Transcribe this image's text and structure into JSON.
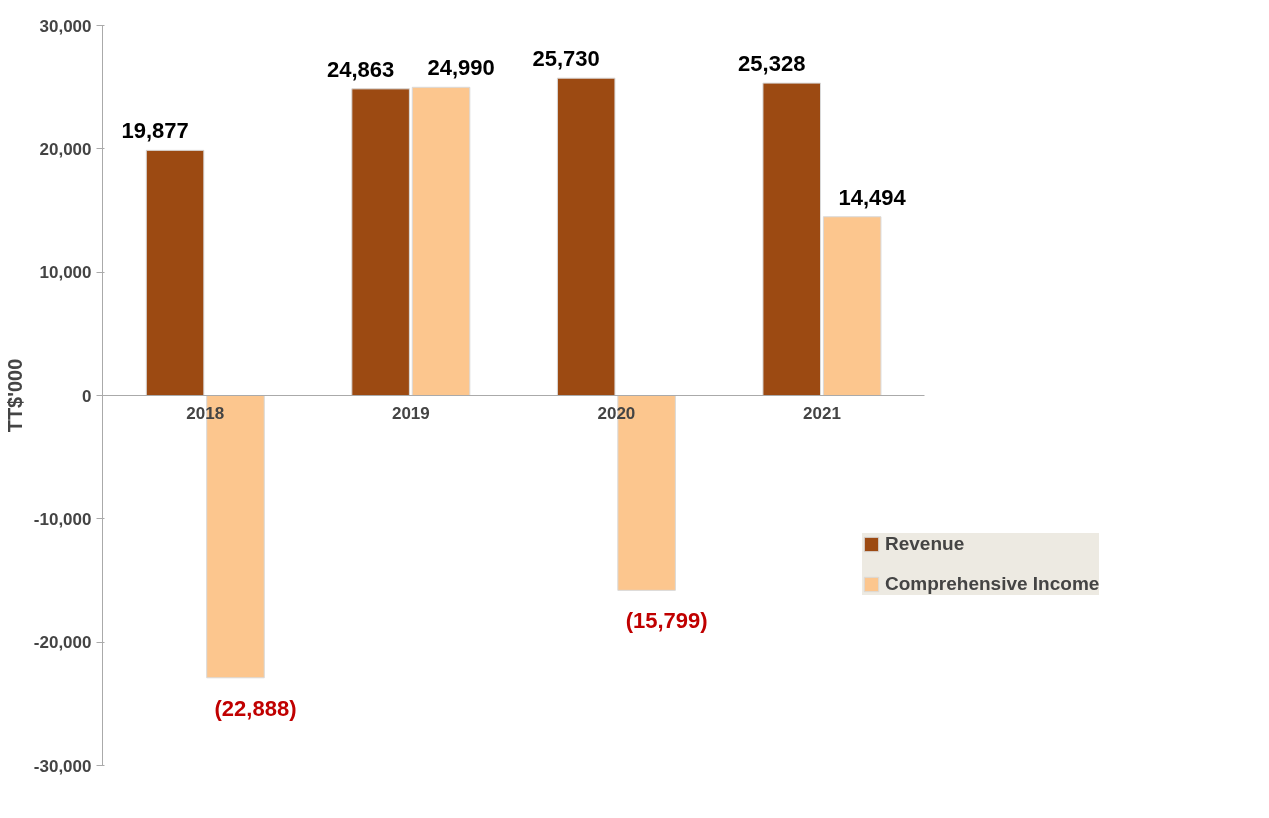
{
  "chart_data": {
    "type": "bar",
    "ylabel": "TT$'000",
    "categories": [
      "2018",
      "2019",
      "2020",
      "2021"
    ],
    "series": [
      {
        "name": "Revenue",
        "color": "#9c4a12",
        "values": [
          19877,
          24863,
          25730,
          25328
        ],
        "value_labels": [
          "19,877",
          "24,863",
          "25,730",
          "25,328"
        ]
      },
      {
        "name": "Comprehensive Income",
        "color": "#fcc68e",
        "values": [
          -22888,
          24990,
          -15799,
          14494
        ],
        "value_labels": [
          "(22,888)",
          "24,990",
          "(15,799)",
          "14,494"
        ]
      }
    ],
    "ylim": [
      -30000,
      30000
    ],
    "yticks": [
      {
        "value": -30000,
        "label": "-30,000"
      },
      {
        "value": -20000,
        "label": "-20,000"
      },
      {
        "value": -10000,
        "label": "-10,000"
      },
      0,
      {
        "value": 10000,
        "label": "10,000"
      },
      {
        "value": 20000,
        "label": "20,000"
      },
      {
        "value": 30000,
        "label": "30,000"
      }
    ],
    "grid": false,
    "legend": "right"
  }
}
